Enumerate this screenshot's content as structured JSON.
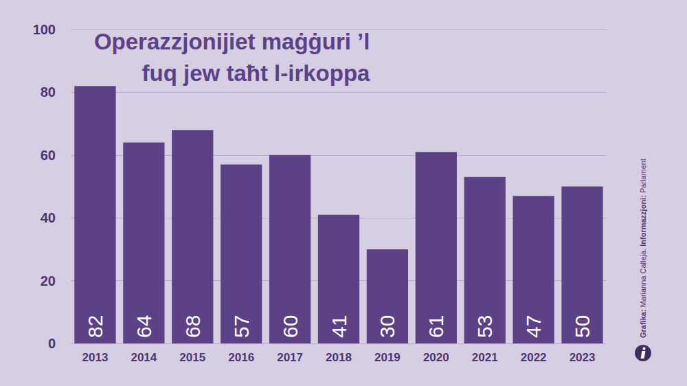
{
  "chart_data": {
    "type": "bar",
    "title": "Operazzjonijiet maġġuri ’l fuq jew taħt l-irkoppa",
    "categories": [
      "2013",
      "2014",
      "2015",
      "2016",
      "2017",
      "2018",
      "2019",
      "2020",
      "2021",
      "2022",
      "2023"
    ],
    "values": [
      82,
      64,
      68,
      57,
      60,
      41,
      30,
      61,
      53,
      47,
      50
    ],
    "color": "#5c4186",
    "ylim": [
      0,
      100
    ],
    "yticks": [
      0,
      20,
      40,
      60,
      80,
      100
    ],
    "grid": true,
    "data_labels": true,
    "annotations": [
      "Grafika: Marianna Calleja. Informazzjoni: Parlament"
    ]
  }
}
